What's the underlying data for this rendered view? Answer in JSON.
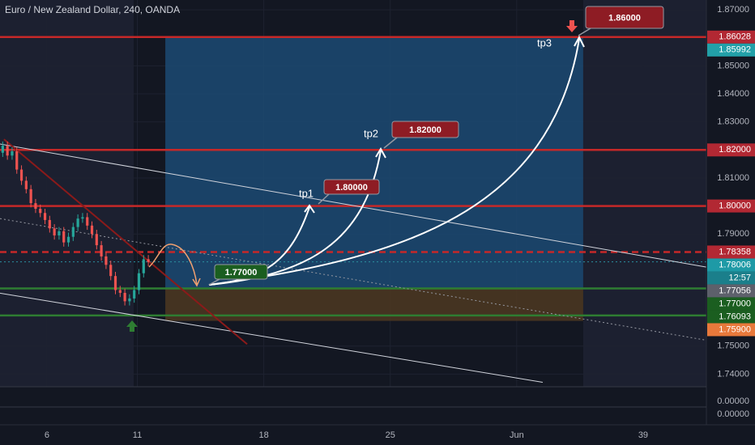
{
  "chart_data": {
    "type": "candlestick",
    "title": "Euro / New Zealand Dollar, 240, OANDA",
    "x": [
      3.55,
      3.81,
      4.07,
      4.33,
      4.59,
      4.85,
      5.11,
      5.37,
      5.63,
      5.89,
      6.15,
      6.41,
      6.67,
      6.93,
      7.19,
      7.45,
      7.71,
      7.97,
      8.23,
      8.49,
      8.75,
      9.01,
      9.27,
      9.53,
      9.79,
      10.05,
      10.31,
      10.57,
      10.83,
      11.09,
      11.35,
      11.61
    ],
    "open": [
      1.819,
      1.8215,
      1.818,
      1.8195,
      1.813,
      1.809,
      1.806,
      1.801,
      1.799,
      1.7975,
      1.795,
      1.792,
      1.7895,
      1.791,
      1.787,
      1.789,
      1.7925,
      1.7955,
      1.796,
      1.793,
      1.79,
      1.786,
      1.782,
      1.779,
      1.775,
      1.77,
      1.769,
      1.766,
      1.767,
      1.77,
      1.776,
      1.781
    ],
    "high": [
      1.823,
      1.823,
      1.821,
      1.821,
      1.8145,
      1.8105,
      1.8075,
      1.8025,
      1.8005,
      1.799,
      1.7965,
      1.7935,
      1.7925,
      1.7925,
      1.7905,
      1.794,
      1.797,
      1.7975,
      1.7975,
      1.7945,
      1.7915,
      1.7875,
      1.7835,
      1.7805,
      1.7765,
      1.7715,
      1.7705,
      1.7685,
      1.7715,
      1.7775,
      1.7825,
      1.7825
    ],
    "low": [
      1.8175,
      1.8165,
      1.8165,
      1.8115,
      1.8075,
      1.8045,
      1.7995,
      1.7975,
      1.796,
      1.7935,
      1.7905,
      1.788,
      1.788,
      1.7855,
      1.7855,
      1.7875,
      1.791,
      1.794,
      1.7915,
      1.7885,
      1.7845,
      1.7805,
      1.7775,
      1.7735,
      1.7685,
      1.7675,
      1.7645,
      1.7645,
      1.7655,
      1.7685,
      1.7745,
      1.7785
    ],
    "close": [
      1.8215,
      1.818,
      1.8195,
      1.813,
      1.809,
      1.806,
      1.801,
      1.799,
      1.7975,
      1.795,
      1.792,
      1.7895,
      1.791,
      1.787,
      1.789,
      1.7925,
      1.7955,
      1.796,
      1.793,
      1.79,
      1.786,
      1.782,
      1.779,
      1.775,
      1.77,
      1.769,
      1.766,
      1.767,
      1.77,
      1.776,
      1.781,
      1.78
    ],
    "up_color": "#26a69a",
    "down_color": "#ef5350",
    "xlim": [
      3.4,
      42.5
    ],
    "xticks": [
      6,
      11,
      18,
      25,
      {
        "value": 32,
        "label": "Jun"
      },
      39
    ],
    "ylim": [
      1.7355,
      1.8735
    ],
    "yticks": [
      {
        "value": 1.87,
        "label": "1.87000"
      },
      {
        "value": 1.85,
        "label": "1.85000"
      },
      {
        "value": 1.84,
        "label": "1.84000"
      },
      {
        "value": 1.83,
        "label": "1.83000"
      },
      {
        "value": 1.81,
        "label": "1.81000"
      },
      {
        "value": 1.79,
        "label": "1.79000"
      },
      {
        "value": 1.75,
        "label": "1.75000"
      },
      {
        "value": 1.74,
        "label": "1.74000"
      }
    ],
    "grid": true,
    "tags": [
      {
        "value": 1.86028,
        "label": "1.86028",
        "color": "#b22833",
        "line": {
          "color": "#c62828",
          "style": "solid"
        }
      },
      {
        "value": 1.85992,
        "label": "1.85992",
        "color": "#22a0a8"
      },
      {
        "value": 1.82,
        "label": "1.82000",
        "color": "#b22833",
        "line": {
          "color": "#c62828",
          "style": "solid"
        }
      },
      {
        "value": 1.8,
        "label": "1.80000",
        "color": "#b22833",
        "line": {
          "color": "#c62828",
          "style": "solid"
        }
      },
      {
        "value": 1.78358,
        "label": "1.78358",
        "color": "#b22833",
        "line": {
          "color": "#c62828",
          "style": "dashed"
        }
      },
      {
        "value": 1.78006,
        "label": "1.78006",
        "color": "#1e9aa6",
        "line": {
          "color": "#2a8fa0",
          "style": "dotted"
        }
      },
      {
        "value": 1.77056,
        "label": "1.77056",
        "color": "#5d606b",
        "line": {
          "color": "#2e7d32",
          "style": "solid"
        }
      },
      {
        "value": 1.77,
        "label": "1.77000",
        "color": "#1b5e20"
      },
      {
        "value": 1.76093,
        "label": "1.76093",
        "color": "#1b5e20",
        "line": {
          "color": "#2e7d32",
          "style": "solid"
        }
      },
      {
        "value": 1.759,
        "label": "1.75900",
        "color": "#e8793b"
      }
    ],
    "countdown": "12:57",
    "position": {
      "x": [
        12.55,
        35.68
      ],
      "target": 1.86028,
      "entry": 1.77056,
      "stop": 1.759,
      "target_color": "#1c4a73",
      "stop_color": "#4a3621"
    },
    "trendlines": [
      {
        "x": [
          3.4,
          42.5
        ],
        "y": [
          1.8221,
          1.7782
        ],
        "color": "#d1d4dc",
        "style": "solid"
      },
      {
        "x": [
          3.4,
          33.44
        ],
        "y": [
          1.7689,
          1.7371
        ],
        "color": "#d1d4dc",
        "style": "solid"
      },
      {
        "x": [
          3.4,
          42.5
        ],
        "y": [
          1.7955,
          1.7521
        ],
        "color": "#9598a1",
        "style": "dotted"
      },
      {
        "x": [
          3.62,
          17.08
        ],
        "y": [
          1.8238,
          1.7507
        ],
        "color": "#8b1a1a",
        "style": "solid"
      }
    ],
    "annotations": [
      {
        "label": "1.77000",
        "color": "#1b5e20"
      },
      {
        "label": "1.80000",
        "color": "#8e1c24"
      },
      {
        "label": "1.82000",
        "color": "#8e1c24"
      },
      {
        "label": "1.86000",
        "color": "#8e1c24"
      }
    ],
    "tp_labels": [
      "tp1",
      "tp2",
      "tp3"
    ],
    "panes": [
      "0.00000",
      "0.00000"
    ]
  }
}
